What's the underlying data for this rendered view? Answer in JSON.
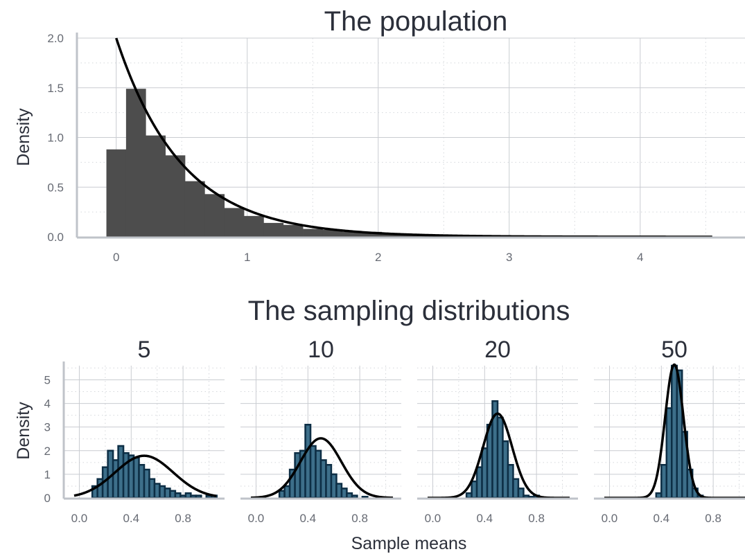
{
  "colors": {
    "pop_bar": "#4d4d4d",
    "samp_fill": "#3d6f8a",
    "samp_stroke": "#0d2e45",
    "curve": "#000000",
    "text": "#2b2f3a",
    "tick": "#666a73"
  },
  "chart_data": [
    {
      "type": "bar",
      "title": "The population",
      "ylabel": "Density",
      "xlabel": "",
      "xlim": [
        -0.3,
        4.8
      ],
      "ylim": [
        0,
        2.0
      ],
      "xticks": [
        0,
        1,
        2,
        3,
        4
      ],
      "xtick_labels": [
        "0",
        "1",
        "2",
        "3",
        "4"
      ],
      "yticks": [
        0,
        0.5,
        1,
        1.5,
        2
      ],
      "ytick_labels": [
        "0.0",
        "0.5",
        "1.0",
        "1.5",
        "2.0"
      ],
      "grid": true,
      "bin_start": -0.075,
      "bin_width": 0.15,
      "values": [
        0.88,
        1.49,
        1.02,
        0.82,
        0.56,
        0.43,
        0.29,
        0.21,
        0.14,
        0.12,
        0.08,
        0.07,
        0.05,
        0.05,
        0.03,
        0.02,
        0.02,
        0.015,
        0.012,
        0.01,
        0.008,
        0.007,
        0.006,
        0.005,
        0.004,
        0.004,
        0.003,
        0.003,
        0.002,
        0.002,
        0.002
      ],
      "curve": {
        "name": "exponential density",
        "rate": 2
      }
    },
    {
      "type": "bar",
      "title": "The sampling distributions",
      "ylabel": "Density",
      "xlabel": "Sample means",
      "xlim": [
        -0.12,
        1.12
      ],
      "ylim": [
        0,
        5.6
      ],
      "xticks": [
        0,
        0.4,
        0.8
      ],
      "xtick_labels": [
        "0.0",
        "0.4",
        "0.8"
      ],
      "yticks": [
        0,
        1,
        2,
        3,
        4,
        5
      ],
      "ytick_labels": [
        "0",
        "1",
        "2",
        "3",
        "4",
        "5"
      ],
      "grid": true,
      "bin_width": 0.04,
      "mean": 0.5,
      "panels": [
        {
          "label": "5",
          "bin_start": 0.1,
          "values": [
            0.5,
            0.8,
            1.3,
            2.0,
            1.6,
            2.2,
            1.9,
            1.8,
            1.7,
            1.4,
            1.2,
            0.8,
            0.6,
            0.5,
            0.4,
            0.3,
            0.2,
            0.1,
            0.2,
            0.1,
            0.1,
            0.0,
            0.1,
            0.1
          ],
          "sd": 0.2236
        },
        {
          "label": "10",
          "bin_start": 0.18,
          "values": [
            0.3,
            0.5,
            1.2,
            1.9,
            2.0,
            3.1,
            2.2,
            2.0,
            1.6,
            1.4,
            1.0,
            0.6,
            0.4,
            0.2,
            0.1,
            0.0,
            0.05
          ],
          "sd": 0.1581
        },
        {
          "label": "20",
          "bin_start": 0.26,
          "values": [
            0.2,
            0.7,
            1.3,
            2.1,
            3.1,
            4.1,
            3.4,
            2.4,
            1.4,
            0.8,
            0.4,
            0.1,
            0.05,
            0.1
          ],
          "sd": 0.1118
        },
        {
          "label": "50",
          "bin_start": 0.36,
          "values": [
            0.2,
            1.4,
            3.8,
            5.6,
            5.4,
            2.8,
            1.2,
            0.4,
            0.1
          ],
          "sd": 0.0707
        }
      ]
    }
  ]
}
